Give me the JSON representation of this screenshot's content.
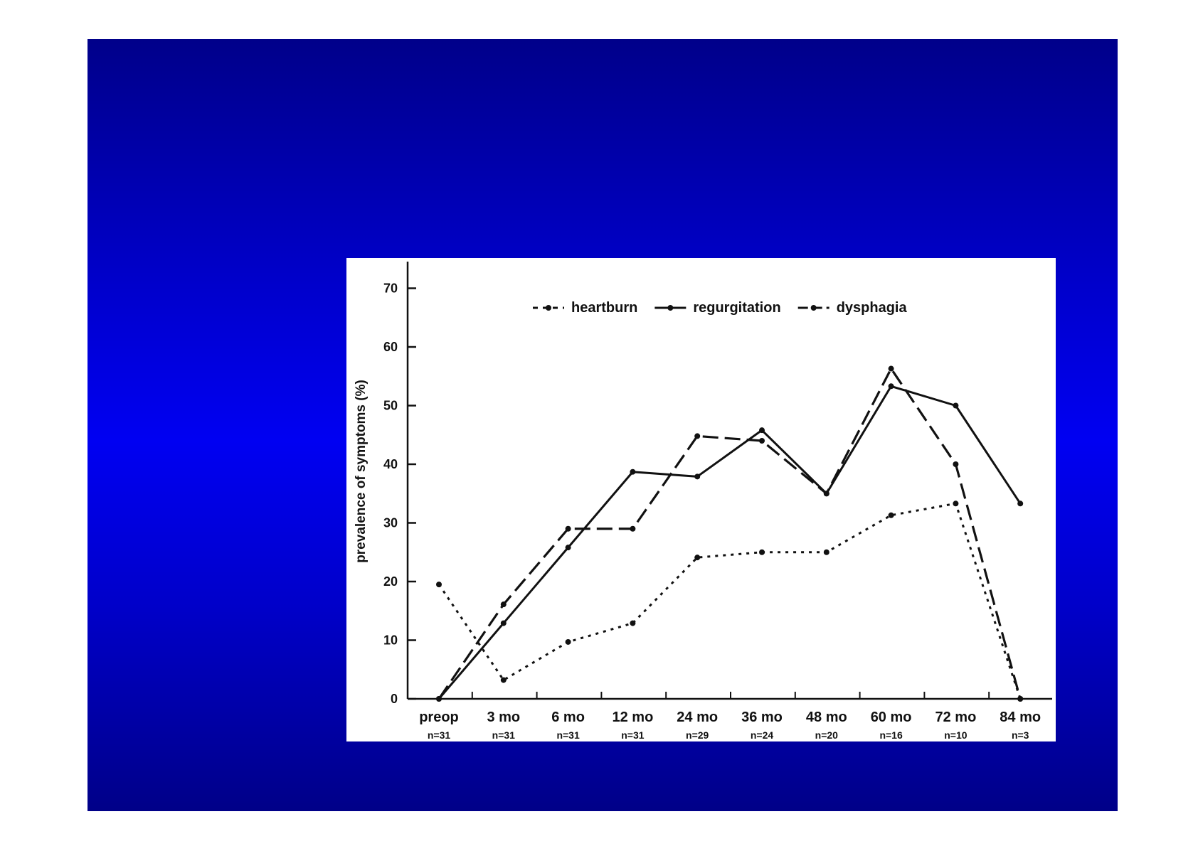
{
  "colors": {
    "slide_top": "#00008a",
    "slide_middle": "#0000f2",
    "chart_background": "#ffffff",
    "ink": "#111111"
  },
  "chart_data": {
    "type": "line",
    "title": "",
    "xlabel": "",
    "ylabel": "prevalence of symptoms (%)",
    "ylim": [
      0,
      75
    ],
    "yticks": [
      0,
      10,
      20,
      30,
      40,
      50,
      60,
      70
    ],
    "grid": false,
    "legend_position": "top",
    "categories": [
      "preop",
      "3 mo",
      "6 mo",
      "12 mo",
      "24 mo",
      "36 mo",
      "48 mo",
      "60 mo",
      "72 mo",
      "84 mo"
    ],
    "sample_sizes": [
      "n=31",
      "n=31",
      "n=31",
      "n=31",
      "n=29",
      "n=24",
      "n=20",
      "n=16",
      "n=10",
      "n=3"
    ],
    "series": [
      {
        "name": "heartburn",
        "line_style": "dotted",
        "values": [
          19.5,
          3.2,
          9.7,
          12.9,
          24.1,
          25.0,
          25.0,
          31.3,
          33.3,
          0
        ]
      },
      {
        "name": "regurgitation",
        "line_style": "solid",
        "values": [
          0,
          12.9,
          25.8,
          38.7,
          37.9,
          45.8,
          35.0,
          53.3,
          50.0,
          33.3
        ]
      },
      {
        "name": "dysphagia",
        "line_style": "long-dash",
        "values": [
          0,
          16.1,
          29.0,
          29.0,
          44.8,
          44.0,
          35.0,
          56.3,
          40.0,
          0
        ]
      }
    ]
  }
}
